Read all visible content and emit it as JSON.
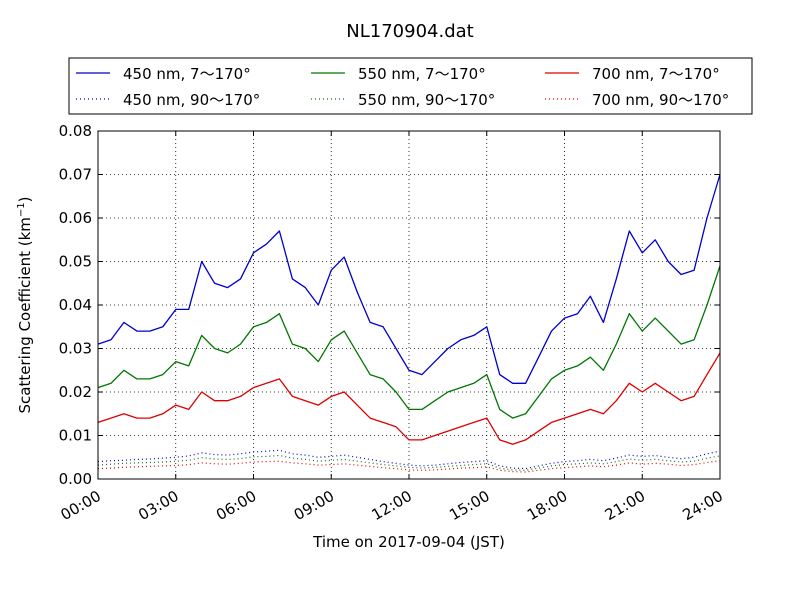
{
  "chart_data": {
    "type": "line",
    "title": "NL170904.dat",
    "xlabel": "Time on 2017-09-04 (JST)",
    "ylabel_main": "Scattering Coefficient (km",
    "ylabel_sup": "−1",
    "ylabel_end": ")",
    "xlim": [
      0,
      24
    ],
    "ylim": [
      0,
      0.08
    ],
    "grid": true,
    "legend_position": "top",
    "x_ticks": [
      0,
      3,
      6,
      9,
      12,
      15,
      18,
      21,
      24
    ],
    "x_tick_labels": [
      "00:00",
      "03:00",
      "06:00",
      "09:00",
      "12:00",
      "15:00",
      "18:00",
      "21:00",
      "24:00"
    ],
    "y_ticks": [
      0,
      0.01,
      0.02,
      0.03,
      0.04,
      0.05,
      0.06,
      0.07,
      0.08
    ],
    "y_tick_labels": [
      "0.00",
      "0.01",
      "0.02",
      "0.03",
      "0.04",
      "0.05",
      "0.06",
      "0.07",
      "0.08"
    ],
    "x": [
      0,
      0.5,
      1,
      1.5,
      2,
      2.5,
      3,
      3.5,
      4,
      4.5,
      5,
      5.5,
      6,
      6.5,
      7,
      7.5,
      8,
      8.5,
      9,
      9.5,
      10,
      10.5,
      11,
      11.5,
      12,
      12.5,
      13,
      13.5,
      14,
      14.5,
      15,
      15.5,
      16,
      16.5,
      17,
      17.5,
      18,
      18.5,
      19,
      19.5,
      20,
      20.5,
      21,
      21.5,
      22,
      22.5,
      23,
      23.5,
      24
    ],
    "series": [
      {
        "name": "450 nm, 7～170°",
        "color": "#0000cc",
        "style": "solid",
        "values": [
          0.031,
          0.032,
          0.036,
          0.034,
          0.034,
          0.035,
          0.039,
          0.039,
          0.05,
          0.045,
          0.044,
          0.046,
          0.052,
          0.054,
          0.057,
          0.046,
          0.044,
          0.04,
          0.048,
          0.051,
          0.043,
          0.036,
          0.035,
          0.03,
          0.025,
          0.024,
          0.027,
          0.03,
          0.032,
          0.033,
          0.035,
          0.024,
          0.022,
          0.022,
          0.028,
          0.034,
          0.037,
          0.038,
          0.042,
          0.036,
          0.046,
          0.057,
          0.052,
          0.055,
          0.05,
          0.047,
          0.048,
          0.06,
          0.07
        ]
      },
      {
        "name": "450 nm, 90～170°",
        "color": "#0000cc",
        "style": "dotted",
        "values": [
          0.004,
          0.0042,
          0.0043,
          0.0045,
          0.0046,
          0.0048,
          0.005,
          0.0053,
          0.006,
          0.0056,
          0.0055,
          0.0058,
          0.0062,
          0.0064,
          0.0066,
          0.0058,
          0.0055,
          0.005,
          0.0052,
          0.0055,
          0.005,
          0.0045,
          0.004,
          0.0036,
          0.0032,
          0.003,
          0.0032,
          0.0035,
          0.0038,
          0.004,
          0.0042,
          0.003,
          0.0025,
          0.0024,
          0.003,
          0.0036,
          0.004,
          0.0042,
          0.0045,
          0.0042,
          0.0048,
          0.0055,
          0.0052,
          0.0054,
          0.005,
          0.0047,
          0.005,
          0.0058,
          0.0064
        ]
      },
      {
        "name": "550 nm, 7～170°",
        "color": "#007700",
        "style": "solid",
        "values": [
          0.021,
          0.022,
          0.025,
          0.023,
          0.023,
          0.024,
          0.027,
          0.026,
          0.033,
          0.03,
          0.029,
          0.031,
          0.035,
          0.036,
          0.038,
          0.031,
          0.03,
          0.027,
          0.032,
          0.034,
          0.029,
          0.024,
          0.023,
          0.02,
          0.016,
          0.016,
          0.018,
          0.02,
          0.021,
          0.022,
          0.024,
          0.016,
          0.014,
          0.015,
          0.019,
          0.023,
          0.025,
          0.026,
          0.028,
          0.025,
          0.031,
          0.038,
          0.034,
          0.037,
          0.034,
          0.031,
          0.032,
          0.04,
          0.049
        ]
      },
      {
        "name": "550 nm, 90～170°",
        "color": "#007700",
        "style": "dotted",
        "values": [
          0.0032,
          0.0034,
          0.0036,
          0.0037,
          0.0038,
          0.0039,
          0.0041,
          0.0043,
          0.0049,
          0.0046,
          0.0045,
          0.0047,
          0.0051,
          0.0052,
          0.0054,
          0.0048,
          0.0045,
          0.0041,
          0.0043,
          0.0045,
          0.0041,
          0.0037,
          0.0033,
          0.003,
          0.0027,
          0.0025,
          0.0027,
          0.0029,
          0.0031,
          0.0033,
          0.0035,
          0.0025,
          0.0021,
          0.002,
          0.0025,
          0.003,
          0.0033,
          0.0035,
          0.0037,
          0.0035,
          0.004,
          0.0046,
          0.0043,
          0.0045,
          0.0042,
          0.0039,
          0.0041,
          0.0048,
          0.0053
        ]
      },
      {
        "name": "700 nm, 7～170°",
        "color": "#dd0000",
        "style": "solid",
        "values": [
          0.013,
          0.014,
          0.015,
          0.014,
          0.014,
          0.015,
          0.017,
          0.016,
          0.02,
          0.018,
          0.018,
          0.019,
          0.021,
          0.022,
          0.023,
          0.019,
          0.018,
          0.017,
          0.019,
          0.02,
          0.017,
          0.014,
          0.013,
          0.012,
          0.009,
          0.009,
          0.01,
          0.011,
          0.012,
          0.013,
          0.014,
          0.009,
          0.008,
          0.009,
          0.011,
          0.013,
          0.014,
          0.015,
          0.016,
          0.015,
          0.018,
          0.022,
          0.02,
          0.022,
          0.02,
          0.018,
          0.019,
          0.024,
          0.029
        ]
      },
      {
        "name": "700 nm, 90～170°",
        "color": "#dd0000",
        "style": "dotted",
        "values": [
          0.0024,
          0.0025,
          0.0027,
          0.0028,
          0.0029,
          0.003,
          0.0031,
          0.0033,
          0.0037,
          0.0035,
          0.0034,
          0.0036,
          0.0039,
          0.004,
          0.0041,
          0.0037,
          0.0035,
          0.0032,
          0.0033,
          0.0035,
          0.0032,
          0.0029,
          0.0026,
          0.0024,
          0.0021,
          0.002,
          0.0021,
          0.0023,
          0.0025,
          0.0026,
          0.0028,
          0.002,
          0.0017,
          0.0016,
          0.002,
          0.0024,
          0.0026,
          0.0028,
          0.003,
          0.0028,
          0.0032,
          0.0037,
          0.0034,
          0.0036,
          0.0034,
          0.0031,
          0.0033,
          0.0038,
          0.0042
        ]
      }
    ]
  }
}
